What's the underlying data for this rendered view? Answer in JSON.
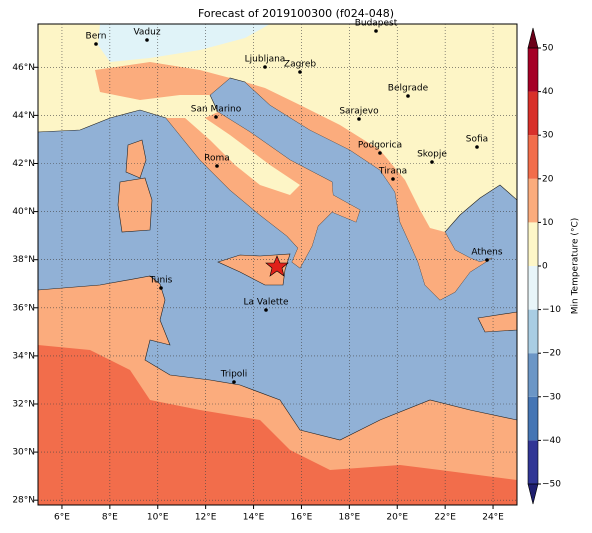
{
  "title": "Forecast of 2019100300 (f024-048)",
  "map": {
    "xlim": [
      5,
      25
    ],
    "ylim": [
      27.8,
      47.8
    ],
    "xticks": [
      {
        "value": 6,
        "label": "6°E"
      },
      {
        "value": 8,
        "label": "8°E"
      },
      {
        "value": 10,
        "label": "10°E"
      },
      {
        "value": 12,
        "label": "12°E"
      },
      {
        "value": 14,
        "label": "14°E"
      },
      {
        "value": 16,
        "label": "16°E"
      },
      {
        "value": 18,
        "label": "18°E"
      },
      {
        "value": 20,
        "label": "20°E"
      },
      {
        "value": 22,
        "label": "22°E"
      },
      {
        "value": 24,
        "label": "24°E"
      }
    ],
    "yticks": [
      {
        "value": 28,
        "label": "28°N"
      },
      {
        "value": 30,
        "label": "30°N"
      },
      {
        "value": 32,
        "label": "32°N"
      },
      {
        "value": 34,
        "label": "34°N"
      },
      {
        "value": 36,
        "label": "36°N"
      },
      {
        "value": 38,
        "label": "38°N"
      },
      {
        "value": 40,
        "label": "40°N"
      },
      {
        "value": 42,
        "label": "42°N"
      },
      {
        "value": 44,
        "label": "44°N"
      },
      {
        "value": 46,
        "label": "46°N"
      }
    ],
    "grid": true
  },
  "cities": [
    {
      "name": "Bern"
    },
    {
      "name": "Vaduz"
    },
    {
      "name": "Budapest"
    },
    {
      "name": "Ljubljana"
    },
    {
      "name": "Zagreb"
    },
    {
      "name": "Belgrade"
    },
    {
      "name": "San Marino"
    },
    {
      "name": "Sarajevo"
    },
    {
      "name": "Podgorica"
    },
    {
      "name": "Sofia"
    },
    {
      "name": "Skopje"
    },
    {
      "name": "Roma"
    },
    {
      "name": "Tirana"
    },
    {
      "name": "Athens"
    },
    {
      "name": "Tunis"
    },
    {
      "name": "La Valette"
    },
    {
      "name": "Tripoli"
    }
  ],
  "colorbar": {
    "label": "Min Temperature (°C)",
    "lim": [
      -50,
      50
    ],
    "ticks": [
      {
        "value": -50,
        "label": "−50"
      },
      {
        "value": -40,
        "label": "−40"
      },
      {
        "value": -30,
        "label": "−30"
      },
      {
        "value": -20,
        "label": "−20"
      },
      {
        "value": -10,
        "label": "−10"
      },
      0,
      10,
      20,
      30,
      40,
      50
    ],
    "colors": [
      "#313695",
      "#4575b4",
      "#6b96c6",
      "#a9cde3",
      "#e8f5f9",
      "#fef7c8",
      "#fbac7d",
      "#f26d4b",
      "#d8302a",
      "#a50026"
    ],
    "under_color": "#1f1f6f",
    "over_color": "#6b0018"
  }
}
